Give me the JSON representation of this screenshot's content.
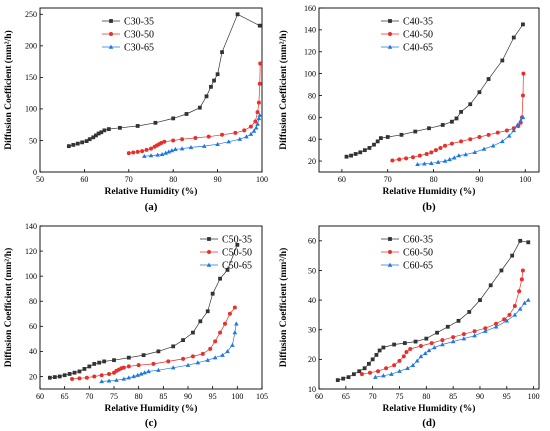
{
  "chart_data": [
    {
      "type": "line",
      "label": "(a)",
      "xlabel": "Relative Humidity (%)",
      "ylabel": "Diffusion Coefficient (mm²/h)",
      "xlim": [
        50,
        100
      ],
      "ylim": [
        0,
        260
      ],
      "xticks": [
        50,
        60,
        70,
        80,
        90,
        100
      ],
      "yticks": [
        0,
        50,
        100,
        150,
        200,
        250
      ],
      "legend_position": "top-left",
      "grid": false,
      "series": [
        {
          "name": "C30-35",
          "color": "#333333",
          "marker": "square",
          "x": [
            56.5,
            57.5,
            58.5,
            59.5,
            60.5,
            61.2,
            62,
            62.6,
            63.2,
            63.8,
            64.5,
            65.5,
            68,
            72,
            76,
            80,
            83,
            86,
            87.5,
            88.5,
            89.2,
            90,
            91,
            94.5,
            99.5
          ],
          "y": [
            41,
            43,
            45,
            47,
            49,
            52,
            55,
            58,
            61,
            63,
            66,
            68,
            70,
            73,
            78,
            85,
            92,
            102,
            120,
            135,
            145,
            155,
            190,
            250,
            232
          ]
        },
        {
          "name": "C30-50",
          "color": "#e8302a",
          "marker": "circle",
          "x": [
            70,
            71,
            72,
            73,
            74,
            75,
            75.8,
            76.3,
            76.8,
            77.3,
            78,
            80,
            82,
            85,
            88,
            91,
            94,
            96,
            97.5,
            98.5,
            99,
            99.3,
            99.5,
            99.6
          ],
          "y": [
            30,
            31,
            32,
            33,
            35,
            37,
            40,
            42,
            44,
            46,
            48,
            50,
            52,
            54,
            56,
            59,
            62,
            66,
            72,
            80,
            95,
            110,
            140,
            172
          ]
        },
        {
          "name": "C30-65",
          "color": "#1f77e4",
          "marker": "triangle",
          "x": [
            73.5,
            75,
            76.5,
            77.5,
            78.3,
            79,
            79.7,
            80.5,
            82,
            84,
            87,
            90,
            92.5,
            95,
            96.5,
            97.5,
            98.2,
            98.7,
            99,
            99.3,
            99.5
          ],
          "y": [
            25,
            26,
            27,
            28,
            30,
            32,
            34,
            36,
            37,
            39,
            41,
            44,
            48,
            52,
            56,
            60,
            65,
            70,
            76,
            85,
            90
          ]
        }
      ]
    },
    {
      "type": "line",
      "label": "(b)",
      "xlabel": "Relative Humidity (%)",
      "ylabel": "Diffusion Coefficient (mm²/h)",
      "xlim": [
        55,
        103
      ],
      "ylim": [
        10,
        160
      ],
      "xticks": [
        60,
        70,
        80,
        90,
        100
      ],
      "yticks": [
        20,
        40,
        60,
        80,
        100,
        120,
        140,
        160
      ],
      "legend_position": "top-left",
      "grid": false,
      "series": [
        {
          "name": "C40-35",
          "color": "#333333",
          "marker": "square",
          "x": [
            61,
            62,
            63,
            64,
            65,
            66,
            67,
            67.8,
            68.5,
            70,
            73,
            76,
            79,
            82,
            84,
            85,
            86,
            88,
            90,
            92,
            95,
            97.5,
            99.5
          ],
          "y": [
            24,
            25,
            26.5,
            28,
            30,
            32,
            35,
            38,
            41,
            42,
            44,
            47,
            50,
            53,
            56,
            59,
            65,
            72,
            83,
            95,
            112,
            133,
            145
          ]
        },
        {
          "name": "C40-50",
          "color": "#e8302a",
          "marker": "circle",
          "x": [
            71,
            72.5,
            74,
            75.5,
            77,
            78.5,
            79.5,
            80.5,
            81.5,
            82.5,
            84,
            86,
            88,
            90,
            92,
            94,
            96,
            97.5,
            98.5,
            99,
            99.3,
            99.5,
            99.6
          ],
          "y": [
            20.5,
            21.5,
            22.5,
            23.5,
            25,
            26.5,
            28,
            30,
            32,
            34,
            36,
            38,
            40,
            42,
            44,
            46,
            48,
            50,
            52,
            55,
            60,
            80,
            100
          ]
        },
        {
          "name": "C40-65",
          "color": "#1f77e4",
          "marker": "triangle",
          "x": [
            76.5,
            78,
            79.5,
            81,
            82.5,
            83.5,
            84.5,
            85.5,
            87,
            89,
            91,
            93,
            95,
            96.5,
            97.5,
            98.3,
            99,
            99.5
          ],
          "y": [
            17,
            17.5,
            18,
            19,
            20,
            21.5,
            23,
            25,
            26,
            28,
            31,
            34,
            38,
            43,
            48,
            53,
            57,
            60
          ]
        }
      ]
    },
    {
      "type": "line",
      "label": "(c)",
      "xlabel": "Relative Humidity (%)",
      "ylabel": "Diffusion Coefficient (mm²/h)",
      "xlim": [
        60,
        105
      ],
      "ylim": [
        10,
        140
      ],
      "xticks": [
        60,
        65,
        70,
        75,
        80,
        85,
        90,
        95,
        100,
        105
      ],
      "yticks": [
        20,
        40,
        60,
        80,
        100,
        120,
        140
      ],
      "legend_position": "top-right",
      "grid": false,
      "series": [
        {
          "name": "C50-35",
          "color": "#333333",
          "marker": "square",
          "x": [
            62,
            63,
            64,
            65,
            66,
            67,
            68,
            69,
            70,
            71,
            72,
            73,
            75,
            78,
            81,
            84,
            87,
            89,
            91,
            92.5,
            94,
            95,
            96.5,
            98,
            100
          ],
          "y": [
            19,
            19.5,
            20,
            21,
            22,
            23,
            24,
            26,
            28,
            30,
            31,
            32,
            33,
            35,
            37,
            40,
            44,
            49,
            55,
            64,
            72,
            86,
            98,
            105,
            125
          ]
        },
        {
          "name": "C50-50",
          "color": "#e8302a",
          "marker": "circle",
          "x": [
            66.5,
            68,
            69.5,
            71,
            72.5,
            74,
            75,
            75.5,
            76,
            76.5,
            77,
            78,
            80,
            83,
            86,
            89,
            91,
            93,
            94.5,
            95.5,
            96.5,
            97.5,
            98.5,
            99.5
          ],
          "y": [
            18,
            18.5,
            19,
            20,
            21,
            22,
            23,
            24.5,
            25.5,
            26.5,
            27,
            28,
            29,
            30,
            32,
            34,
            36,
            38,
            42,
            48,
            55,
            62,
            70,
            75
          ]
        },
        {
          "name": "C50-65",
          "color": "#1f77e4",
          "marker": "triangle",
          "x": [
            72.5,
            74,
            75.5,
            77,
            78,
            79,
            79.8,
            80.5,
            81.2,
            82,
            84,
            87,
            90,
            92,
            94,
            95.5,
            97,
            98,
            99,
            99.5,
            99.8
          ],
          "y": [
            16,
            16.5,
            17,
            18,
            19,
            20,
            21,
            22,
            23,
            24,
            25,
            27,
            29,
            31,
            33,
            35,
            37,
            40,
            45,
            55,
            62
          ]
        }
      ]
    },
    {
      "type": "line",
      "label": "(d)",
      "xlabel": "Relative Humidity (%)",
      "ylabel": "Diffusion Coefficient (mm²/h)",
      "xlim": [
        60,
        101
      ],
      "ylim": [
        10,
        65
      ],
      "xticks": [
        60,
        65,
        70,
        75,
        80,
        85,
        90,
        95,
        100
      ],
      "yticks": [
        10,
        20,
        30,
        40,
        50,
        60
      ],
      "legend_position": "top-left",
      "grid": false,
      "series": [
        {
          "name": "C60-35",
          "color": "#333333",
          "marker": "square",
          "x": [
            63.5,
            64.5,
            65.5,
            66.5,
            67.5,
            68.5,
            69.3,
            70,
            70.7,
            71.3,
            72,
            74,
            76,
            78,
            80,
            82,
            84,
            86,
            88,
            90,
            92,
            94,
            96,
            97.5,
            99
          ],
          "y": [
            13,
            13.5,
            14,
            15,
            16,
            17,
            18.5,
            20,
            21.5,
            23,
            24,
            25,
            25.5,
            26,
            27,
            29,
            31,
            33,
            36,
            40,
            45,
            50,
            55,
            60,
            59.5
          ]
        },
        {
          "name": "C60-50",
          "color": "#e8302a",
          "marker": "circle",
          "x": [
            68,
            69.5,
            71,
            72.5,
            74,
            75,
            75.8,
            76.3,
            77,
            79,
            81,
            83,
            85,
            87,
            89,
            91,
            93,
            94.5,
            95.5,
            96.5,
            97.3,
            97.8,
            98
          ],
          "y": [
            15,
            15.5,
            16,
            17,
            18,
            19.5,
            21,
            22.5,
            23.5,
            24.5,
            25.5,
            26.5,
            27.5,
            28.5,
            29.5,
            30.5,
            32,
            33.5,
            35,
            38,
            43,
            47,
            50
          ]
        },
        {
          "name": "C60-65",
          "color": "#1f77e4",
          "marker": "triangle",
          "x": [
            70.5,
            72,
            73.5,
            75,
            76.5,
            77.5,
            78.3,
            79,
            79.8,
            80.5,
            81.5,
            83,
            85,
            87,
            89,
            91,
            93,
            95,
            96.5,
            97.5,
            98.3,
            99
          ],
          "y": [
            14,
            14.5,
            15,
            16,
            17,
            18,
            19.5,
            21,
            22,
            23,
            24,
            25,
            26,
            27,
            28,
            29.5,
            31,
            33,
            35,
            37,
            39,
            40
          ]
        }
      ]
    }
  ]
}
